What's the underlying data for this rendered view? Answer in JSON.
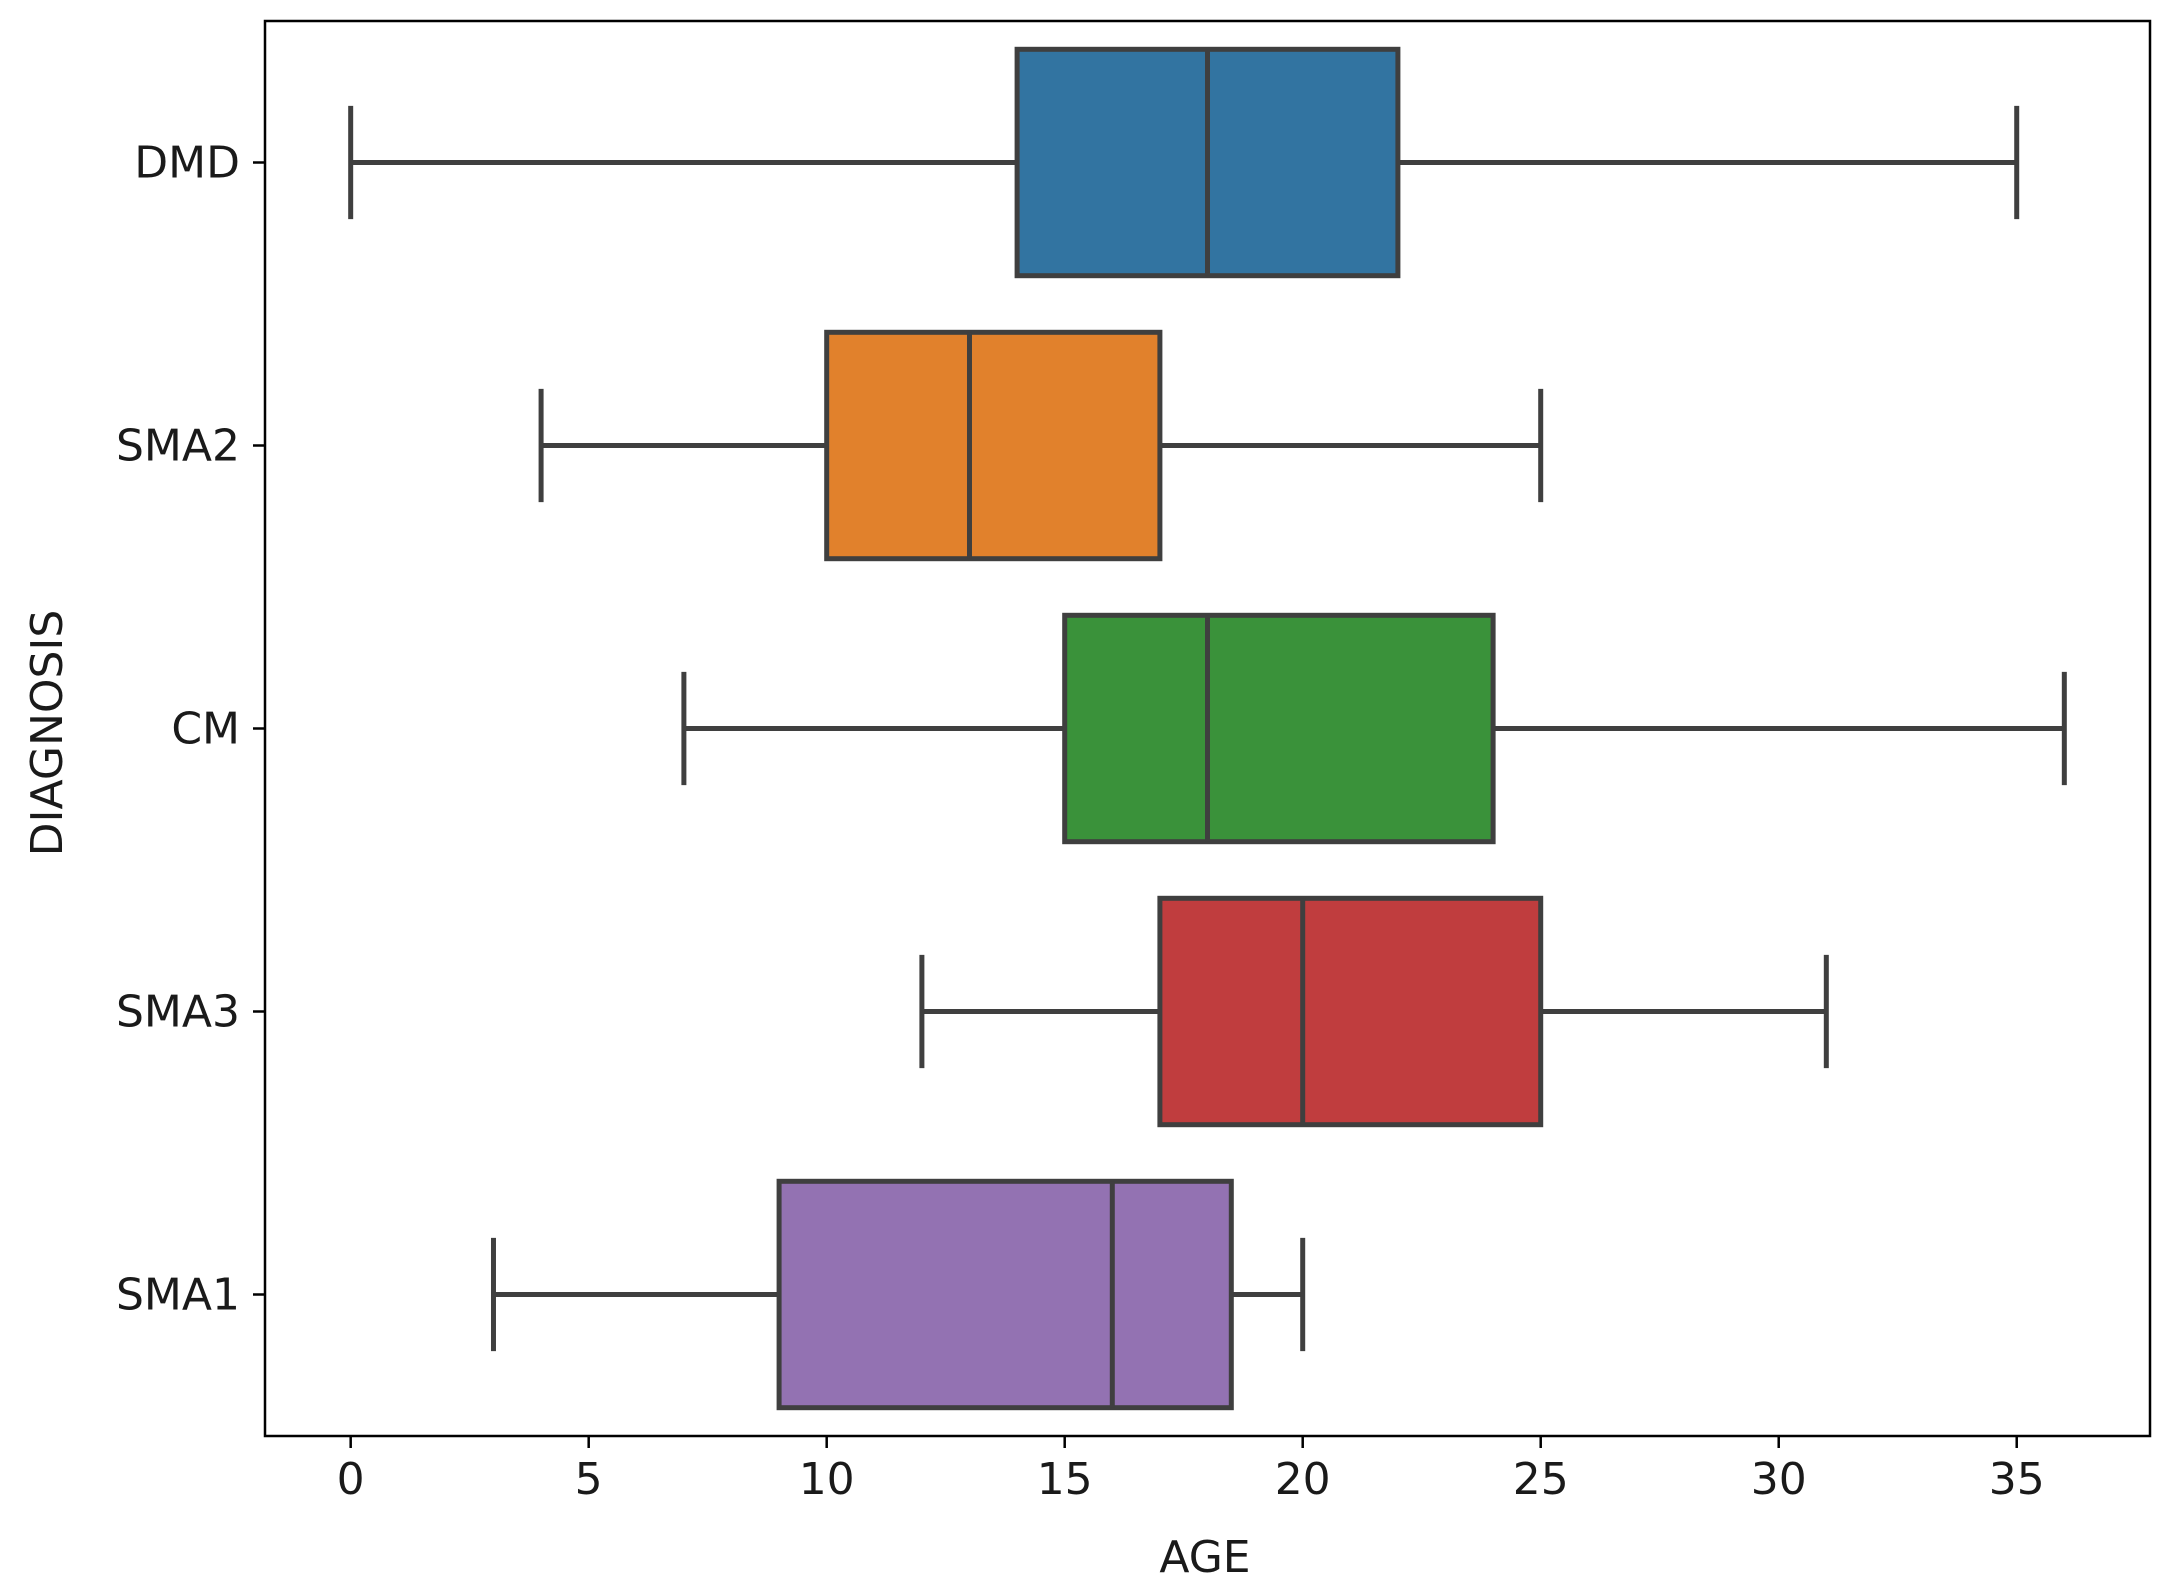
{
  "chart_data": {
    "type": "boxplot",
    "orientation": "horizontal",
    "xlabel": "AGE",
    "ylabel": "DIAGNOSIS",
    "xlim": [
      -1.8,
      37.8
    ],
    "xticks": [
      0,
      5,
      10,
      15,
      20,
      25,
      30,
      35
    ],
    "categories": [
      "DMD",
      "SMA2",
      "CM",
      "SMA3",
      "SMA1"
    ],
    "series": [
      {
        "category": "DMD",
        "whisker_low": 0,
        "q1": 14,
        "median": 18,
        "q3": 22,
        "whisker_high": 35,
        "color": "#3274a1"
      },
      {
        "category": "SMA2",
        "whisker_low": 4,
        "q1": 10,
        "median": 13,
        "q3": 17,
        "whisker_high": 25,
        "color": "#e1812c"
      },
      {
        "category": "CM",
        "whisker_low": 7,
        "q1": 15,
        "median": 18,
        "q3": 24,
        "whisker_high": 36,
        "color": "#3a923a"
      },
      {
        "category": "SMA3",
        "whisker_low": 12,
        "q1": 17,
        "median": 20,
        "q3": 25,
        "whisker_high": 31,
        "color": "#c03d3e"
      },
      {
        "category": "SMA1",
        "whisker_low": 3,
        "q1": 9,
        "median": 16,
        "q3": 18.5,
        "whisker_high": 20,
        "color": "#9372b2"
      }
    ],
    "line_color": "#3f3f3f",
    "grid": false,
    "legend": "none"
  }
}
